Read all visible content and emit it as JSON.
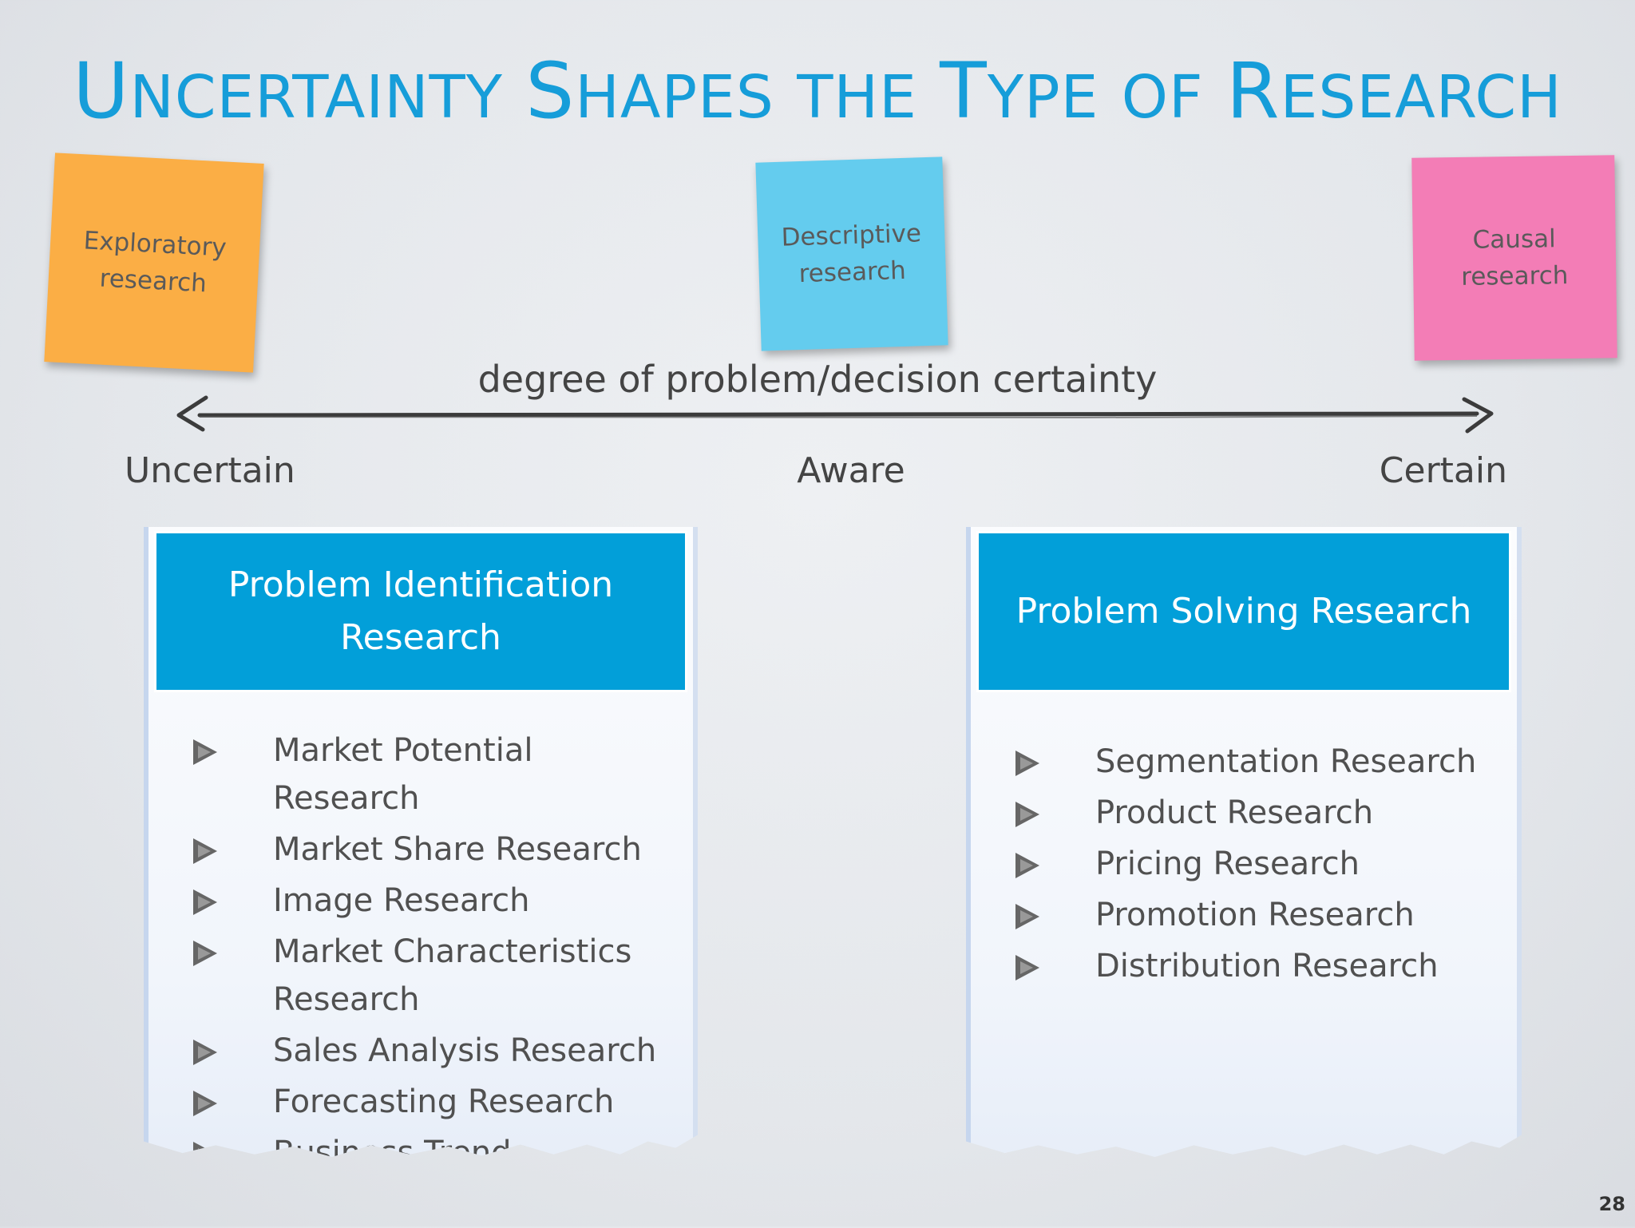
{
  "title": {
    "words": [
      {
        "cap": "U",
        "rest": "NCERTAINTY"
      },
      {
        "cap": "S",
        "rest": "HAPES"
      },
      {
        "cap": "",
        "rest": "THE"
      },
      {
        "cap": "T",
        "rest": "YPE"
      },
      {
        "cap": "",
        "rest": "OF"
      },
      {
        "cap": "R",
        "rest": "ESEARCH"
      }
    ]
  },
  "sticky_notes": [
    {
      "lines": [
        "Exploratory",
        "research"
      ],
      "color": "#fbae45"
    },
    {
      "lines": [
        "Descriptive",
        "research"
      ],
      "color": "#64ccee"
    },
    {
      "lines": [
        "Causal",
        "research"
      ],
      "color": "#f37db6"
    }
  ],
  "axis": {
    "caption": "degree of problem/decision certainty",
    "left_label": "Uncertain",
    "middle_label": "Aware",
    "right_label": "Certain"
  },
  "cards": [
    {
      "header_lines": [
        "Problem Identification",
        "Research"
      ],
      "items": [
        "Market Potential Research",
        "Market Share Research",
        "Image Research",
        "Market Characteristics Research",
        "Sales Analysis Research",
        "Forecasting Research",
        "Business Trends Research"
      ]
    },
    {
      "header_lines": [
        "Problem Solving Research"
      ],
      "items": [
        "Segmentation Research",
        "Product Research",
        "Pricing Research",
        "Promotion Research",
        "Distribution Research"
      ]
    }
  ],
  "colors": {
    "title": "#169dd9",
    "header": "#029fd9"
  },
  "page_number": "28"
}
